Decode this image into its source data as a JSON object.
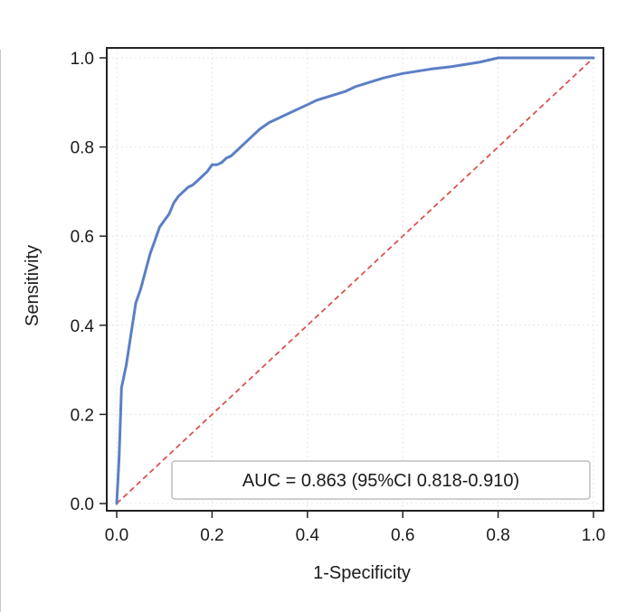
{
  "chart_data": {
    "type": "line",
    "title": "",
    "xlabel": "1-Specificity",
    "ylabel": "Sensitivity",
    "xlim": [
      0.0,
      1.0
    ],
    "ylim": [
      0.0,
      1.0
    ],
    "x_ticks": [
      "0.0",
      "0.2",
      "0.4",
      "0.6",
      "0.8",
      "1.0"
    ],
    "y_ticks": [
      "0.0",
      "0.2",
      "0.4",
      "0.6",
      "0.8",
      "1.0"
    ],
    "grid": true,
    "legend_placement": "lower-right",
    "annotation": "AUC = 0.863 (95%CI 0.818-0.910)",
    "series": [
      {
        "color": "#5b7fc4",
        "style": "solid",
        "x": [
          0.0,
          0.005,
          0.01,
          0.02,
          0.03,
          0.04,
          0.05,
          0.06,
          0.07,
          0.08,
          0.09,
          0.1,
          0.11,
          0.12,
          0.13,
          0.14,
          0.15,
          0.16,
          0.17,
          0.18,
          0.19,
          0.2,
          0.21,
          0.22,
          0.23,
          0.24,
          0.25,
          0.26,
          0.27,
          0.28,
          0.29,
          0.3,
          0.32,
          0.34,
          0.36,
          0.38,
          0.4,
          0.42,
          0.45,
          0.48,
          0.5,
          0.53,
          0.56,
          0.58,
          0.6,
          0.63,
          0.66,
          0.7,
          0.73,
          0.76,
          0.78,
          0.8,
          0.85,
          0.9,
          0.95,
          1.0
        ],
        "y": [
          0.0,
          0.1,
          0.26,
          0.31,
          0.38,
          0.45,
          0.48,
          0.52,
          0.56,
          0.59,
          0.62,
          0.635,
          0.65,
          0.675,
          0.69,
          0.7,
          0.71,
          0.715,
          0.725,
          0.735,
          0.745,
          0.76,
          0.76,
          0.765,
          0.775,
          0.78,
          0.79,
          0.8,
          0.81,
          0.82,
          0.83,
          0.84,
          0.855,
          0.865,
          0.875,
          0.885,
          0.895,
          0.905,
          0.915,
          0.925,
          0.935,
          0.945,
          0.955,
          0.96,
          0.965,
          0.97,
          0.975,
          0.98,
          0.985,
          0.99,
          0.995,
          1.0,
          1.0,
          1.0,
          1.0,
          1.0
        ]
      },
      {
        "color": "#d9534f",
        "style": "dashed",
        "x": [
          0.0,
          1.0
        ],
        "y": [
          0.0,
          1.0
        ]
      }
    ]
  }
}
